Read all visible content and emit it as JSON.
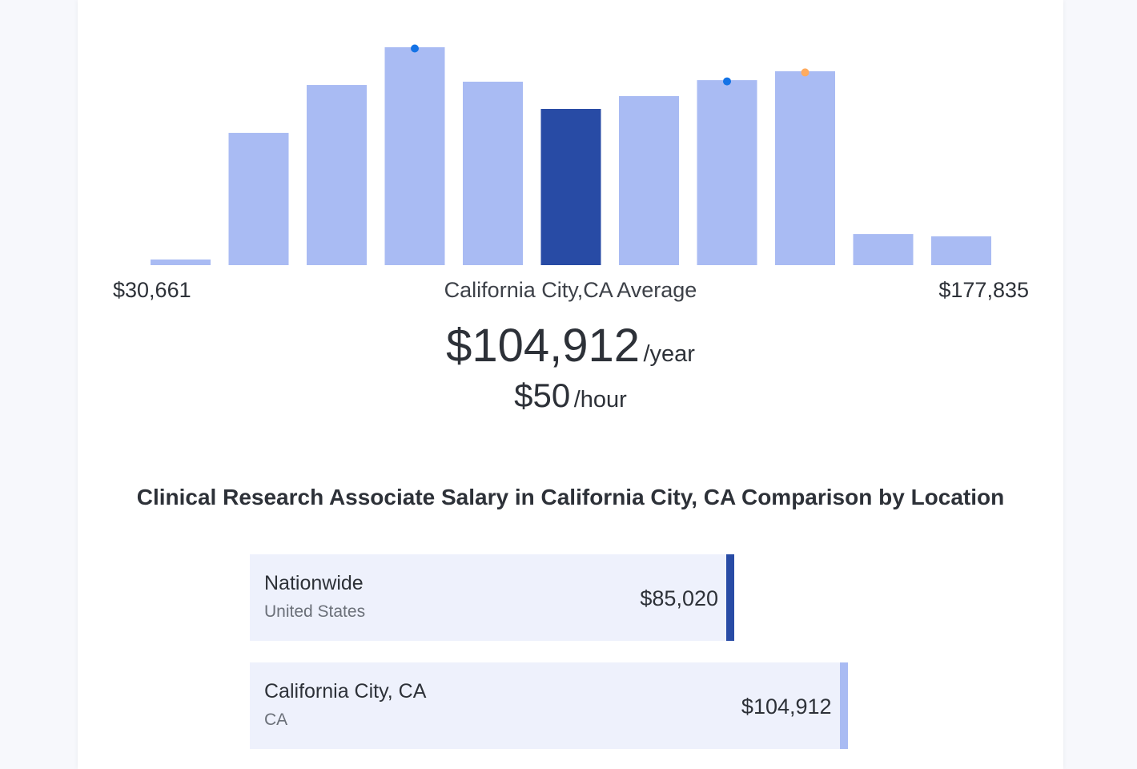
{
  "chart_data": {
    "type": "bar",
    "values": [
      2.6,
      60.7,
      82.7,
      100,
      84.2,
      71.7,
      77.6,
      84.9,
      89.0,
      14.3,
      13.2
    ],
    "highlight_index": 5,
    "markers": [
      {
        "index": 3,
        "color": "#1473e6"
      },
      {
        "index": 7,
        "color": "#1473e6"
      },
      {
        "index": 8,
        "color": "#ffab5e"
      }
    ],
    "min_label": "$30,661",
    "max_label": "$177,835",
    "average_label": "California City,CA Average",
    "colors": {
      "bar": "#a9bbf3",
      "highlight": "#284ba5"
    }
  },
  "summary": {
    "yearly": "$104,912",
    "yearly_unit": "/year",
    "hourly": "$50",
    "hourly_unit": "/hour"
  },
  "comparison": {
    "title": "Clinical Research Associate Salary in California City, CA Comparison by Location",
    "rows": [
      {
        "name": "Nationwide",
        "sub": "United States",
        "value_label": "$85,020",
        "value": 85020,
        "edge_color": "#284ba5"
      },
      {
        "name": "California City, CA",
        "sub": "CA",
        "value_label": "$104,912",
        "value": 104912,
        "edge_color": "#a9bbf3"
      }
    ]
  }
}
